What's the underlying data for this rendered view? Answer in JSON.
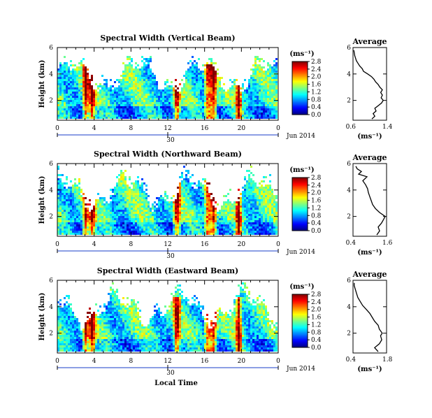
{
  "chart_data": [
    {
      "type": "heatmap",
      "title": "Spectral Width (Vertical Beam)",
      "ylabel": "Height (km)",
      "yticks": [
        "2",
        "4",
        "6"
      ],
      "ylim": [
        0.5,
        6
      ],
      "xticks": [
        "0",
        "4",
        "8",
        "12",
        "16",
        "20",
        "0"
      ],
      "xlim": [
        0,
        24
      ],
      "date_tick": "30",
      "date_label": "Jun 2014",
      "colorbar": {
        "unit": "(ms⁻¹)",
        "ticks": [
          "0.0",
          "0.4",
          "0.8",
          "1.2",
          "1.6",
          "2.0",
          "2.4",
          "2.8"
        ],
        "range": [
          0,
          2.8
        ]
      },
      "profile": {
        "title": "Average",
        "xlabel": "(ms⁻¹)",
        "xticks": [
          "0.6",
          "1.4"
        ],
        "xlim": [
          0.6,
          1.4
        ],
        "yticks": [
          "2",
          "4",
          "6"
        ],
        "ylim": [
          0.5,
          6
        ],
        "points": [
          [
            1.05,
            0.6
          ],
          [
            1.12,
            0.8
          ],
          [
            1.08,
            1.0
          ],
          [
            1.15,
            1.2
          ],
          [
            1.12,
            1.4
          ],
          [
            1.2,
            1.6
          ],
          [
            1.28,
            1.8
          ],
          [
            1.32,
            2.0
          ],
          [
            1.27,
            2.2
          ],
          [
            1.3,
            2.4
          ],
          [
            1.26,
            2.6
          ],
          [
            1.3,
            2.8
          ],
          [
            1.24,
            3.0
          ],
          [
            1.2,
            3.2
          ],
          [
            1.14,
            3.4
          ],
          [
            1.1,
            3.6
          ],
          [
            1.04,
            3.8
          ],
          [
            0.95,
            4.0
          ],
          [
            0.85,
            4.2
          ],
          [
            0.82,
            4.4
          ],
          [
            0.76,
            4.6
          ],
          [
            0.72,
            4.8
          ],
          [
            0.68,
            5.0
          ],
          [
            0.66,
            5.2
          ],
          [
            0.64,
            5.4
          ],
          [
            0.63,
            5.6
          ],
          [
            0.62,
            5.8
          ]
        ]
      }
    },
    {
      "type": "heatmap",
      "title": "Spectral Width (Northward Beam)",
      "ylabel": "Height (km)",
      "yticks": [
        "2",
        "4",
        "6"
      ],
      "ylim": [
        0.5,
        6
      ],
      "xticks": [
        "0",
        "4",
        "8",
        "12",
        "16",
        "20",
        "0"
      ],
      "xlim": [
        0,
        24
      ],
      "date_tick": "30",
      "date_label": "Jun 2014",
      "colorbar": {
        "unit": "(ms⁻¹)",
        "ticks": [
          "0.0",
          "0.4",
          "0.8",
          "1.2",
          "1.6",
          "2.0",
          "2.4",
          "2.8"
        ],
        "range": [
          0,
          2.8
        ]
      },
      "profile": {
        "title": "Average",
        "xlabel": "(ms⁻¹)",
        "xticks": [
          "0.4",
          "1.6"
        ],
        "xlim": [
          0.4,
          1.6
        ],
        "yticks": [
          "2",
          "4",
          "6"
        ],
        "ylim": [
          0.5,
          6
        ],
        "points": [
          [
            1.25,
            0.6
          ],
          [
            1.35,
            0.9
          ],
          [
            1.3,
            1.2
          ],
          [
            1.42,
            1.5
          ],
          [
            1.5,
            1.8
          ],
          [
            1.55,
            2.0
          ],
          [
            1.35,
            2.3
          ],
          [
            1.2,
            2.6
          ],
          [
            1.1,
            2.9
          ],
          [
            1.05,
            3.2
          ],
          [
            1.0,
            3.5
          ],
          [
            0.95,
            3.8
          ],
          [
            0.92,
            4.1
          ],
          [
            0.85,
            4.4
          ],
          [
            0.75,
            4.7
          ],
          [
            0.9,
            5.0
          ],
          [
            0.6,
            5.2
          ],
          [
            0.7,
            5.4
          ],
          [
            0.55,
            5.6
          ],
          [
            0.5,
            5.8
          ]
        ]
      }
    },
    {
      "type": "heatmap",
      "title": "Spectral Width (Eastward Beam)",
      "ylabel": "Height (km)",
      "yticks": [
        "2",
        "4",
        "6"
      ],
      "ylim": [
        0.5,
        6
      ],
      "xticks": [
        "0",
        "4",
        "8",
        "12",
        "16",
        "20",
        "0"
      ],
      "xlim": [
        0,
        24
      ],
      "date_tick": "30",
      "date_label": "Jun 2014",
      "xlabel": "Local Time",
      "colorbar": {
        "unit": "(ms⁻¹)",
        "ticks": [
          "0.0",
          "0.4",
          "0.8",
          "1.2",
          "1.6",
          "2.0",
          "2.4",
          "2.8"
        ],
        "range": [
          0,
          2.8
        ]
      },
      "profile": {
        "title": "Average",
        "xlabel": "(ms⁻¹)",
        "xticks": [
          "0.4",
          "1.8"
        ],
        "xlim": [
          0.4,
          1.8
        ],
        "yticks": [
          "2",
          "4",
          "6"
        ],
        "ylim": [
          0.5,
          6
        ],
        "points": [
          [
            1.45,
            0.6
          ],
          [
            1.3,
            0.9
          ],
          [
            1.5,
            1.2
          ],
          [
            1.6,
            1.5
          ],
          [
            1.55,
            1.8
          ],
          [
            1.62,
            2.0
          ],
          [
            1.5,
            2.3
          ],
          [
            1.45,
            2.6
          ],
          [
            1.3,
            2.9
          ],
          [
            1.2,
            3.2
          ],
          [
            1.1,
            3.5
          ],
          [
            0.95,
            3.8
          ],
          [
            0.8,
            4.1
          ],
          [
            0.7,
            4.4
          ],
          [
            0.6,
            4.7
          ],
          [
            0.55,
            5.0
          ],
          [
            0.5,
            5.3
          ],
          [
            0.45,
            5.6
          ],
          [
            0.45,
            5.8
          ]
        ]
      }
    }
  ]
}
